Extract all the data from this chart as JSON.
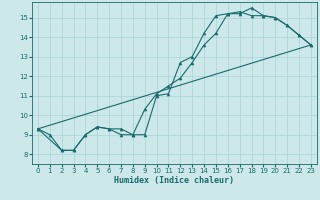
{
  "xlabel": "Humidex (Indice chaleur)",
  "xlim": [
    -0.5,
    23.5
  ],
  "ylim": [
    7.5,
    15.8
  ],
  "xticks": [
    0,
    1,
    2,
    3,
    4,
    5,
    6,
    7,
    8,
    9,
    10,
    11,
    12,
    13,
    14,
    15,
    16,
    17,
    18,
    19,
    20,
    21,
    22,
    23
  ],
  "yticks": [
    8,
    9,
    10,
    11,
    12,
    13,
    14,
    15
  ],
  "bg_color": "#cce8ea",
  "grid_color": "#a8d4d6",
  "line_color": "#1a6b6b",
  "line1": [
    [
      0,
      9.3
    ],
    [
      1,
      9.0
    ],
    [
      2,
      8.2
    ],
    [
      3,
      8.2
    ],
    [
      4,
      9.0
    ],
    [
      5,
      9.4
    ],
    [
      6,
      9.3
    ],
    [
      7,
      9.0
    ],
    [
      8,
      9.0
    ],
    [
      9,
      10.3
    ],
    [
      10,
      11.1
    ],
    [
      11,
      11.5
    ],
    [
      12,
      11.9
    ],
    [
      13,
      12.7
    ],
    [
      14,
      13.6
    ],
    [
      15,
      14.2
    ],
    [
      16,
      15.2
    ],
    [
      17,
      15.2
    ],
    [
      18,
      15.5
    ],
    [
      19,
      15.1
    ],
    [
      20,
      15.0
    ],
    [
      21,
      14.6
    ],
    [
      22,
      14.1
    ],
    [
      23,
      13.6
    ]
  ],
  "line2": [
    [
      0,
      9.3
    ],
    [
      2,
      8.2
    ],
    [
      3,
      8.2
    ],
    [
      4,
      9.0
    ],
    [
      5,
      9.4
    ],
    [
      6,
      9.3
    ],
    [
      7,
      9.3
    ],
    [
      8,
      9.0
    ],
    [
      9,
      9.0
    ],
    [
      10,
      11.0
    ],
    [
      11,
      11.1
    ],
    [
      12,
      12.7
    ],
    [
      13,
      13.0
    ],
    [
      14,
      14.2
    ],
    [
      15,
      15.1
    ],
    [
      16,
      15.2
    ],
    [
      17,
      15.3
    ],
    [
      18,
      15.1
    ],
    [
      19,
      15.1
    ],
    [
      20,
      15.0
    ],
    [
      21,
      14.6
    ],
    [
      22,
      14.1
    ],
    [
      23,
      13.6
    ]
  ],
  "line3": [
    [
      0,
      9.3
    ],
    [
      23,
      13.6
    ]
  ]
}
